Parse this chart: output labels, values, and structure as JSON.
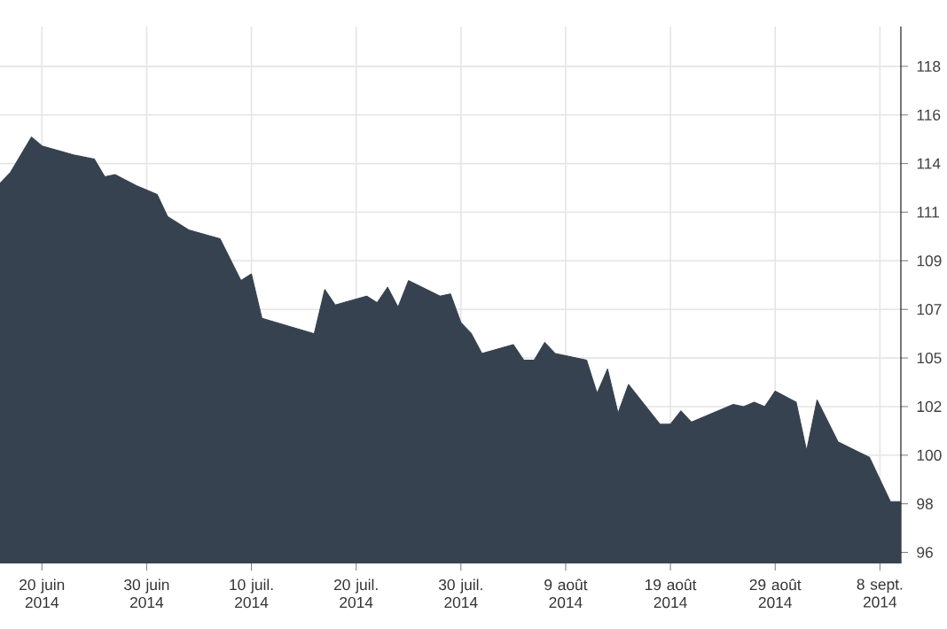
{
  "chart_data": {
    "type": "area",
    "x": [
      "2014-06-16",
      "2014-06-17",
      "2014-06-19",
      "2014-06-20",
      "2014-06-23",
      "2014-06-25",
      "2014-06-26",
      "2014-06-27",
      "2014-06-29",
      "2014-07-01",
      "2014-07-02",
      "2014-07-04",
      "2014-07-07",
      "2014-07-09",
      "2014-07-10",
      "2014-07-11",
      "2014-07-16",
      "2014-07-17",
      "2014-07-18",
      "2014-07-21",
      "2014-07-22",
      "2014-07-23",
      "2014-07-24",
      "2014-07-25",
      "2014-07-28",
      "2014-07-29",
      "2014-07-30",
      "2014-07-31",
      "2014-08-01",
      "2014-08-04",
      "2014-08-05",
      "2014-08-06",
      "2014-08-07",
      "2014-08-08",
      "2014-08-11",
      "2014-08-12",
      "2014-08-13",
      "2014-08-14",
      "2014-08-15",
      "2014-08-18",
      "2014-08-19",
      "2014-08-20",
      "2014-08-21",
      "2014-08-25",
      "2014-08-26",
      "2014-08-27",
      "2014-08-28",
      "2014-08-29",
      "2014-08-31",
      "2014-09-01",
      "2014-09-02",
      "2014-09-04",
      "2014-09-07",
      "2014-09-09",
      "2014-09-10"
    ],
    "series": [
      {
        "color": "#36424f",
        "values": [
          112.6,
          113.1,
          114.7,
          114.3,
          113.9,
          113.7,
          112.9,
          113.0,
          112.5,
          112.1,
          111.1,
          110.5,
          110.1,
          108.2,
          108.5,
          106.5,
          105.8,
          107.8,
          107.1,
          107.5,
          107.2,
          107.9,
          107.0,
          108.2,
          107.5,
          107.6,
          106.3,
          105.8,
          104.9,
          105.3,
          104.6,
          104.6,
          105.4,
          104.9,
          104.6,
          103.1,
          104.2,
          102.2,
          103.5,
          101.7,
          101.7,
          102.3,
          101.8,
          102.6,
          102.5,
          102.7,
          102.5,
          103.2,
          102.7,
          100.5,
          102.8,
          100.9,
          100.2,
          98.2,
          98.2
        ]
      }
    ],
    "xlim": [
      "2014-06-16",
      "2014-09-10"
    ],
    "xticks": [
      {
        "value": "2014-06-20",
        "label": "20 juin 2014"
      },
      {
        "value": "2014-06-30",
        "label": "30 juin 2014"
      },
      {
        "value": "2014-07-10",
        "label": "10 juil. 2014"
      },
      {
        "value": "2014-07-20",
        "label": "20 juil. 2014"
      },
      {
        "value": "2014-07-30",
        "label": "30 juil. 2014"
      },
      {
        "value": "2014-08-09",
        "label": "9 août 2014"
      },
      {
        "value": "2014-08-19",
        "label": "19 août 2014"
      },
      {
        "value": "2014-08-29",
        "label": "29 août 2014"
      },
      {
        "value": "2014-09-08",
        "label": "8 sept. 2014"
      }
    ],
    "ylim": [
      95.4,
      119.7
    ],
    "yticks": [
      {
        "value": 95.9,
        "label": "96"
      },
      {
        "value": 98.1,
        "label": "98"
      },
      {
        "value": 100.3,
        "label": "100"
      },
      {
        "value": 102.5,
        "label": "102"
      },
      {
        "value": 104.7,
        "label": "105"
      },
      {
        "value": 106.9,
        "label": "107"
      },
      {
        "value": 109.1,
        "label": "109"
      },
      {
        "value": 111.3,
        "label": "111"
      },
      {
        "value": 113.5,
        "label": "114"
      },
      {
        "value": 115.7,
        "label": "116"
      },
      {
        "value": 117.9,
        "label": "118"
      }
    ],
    "grid": true
  }
}
